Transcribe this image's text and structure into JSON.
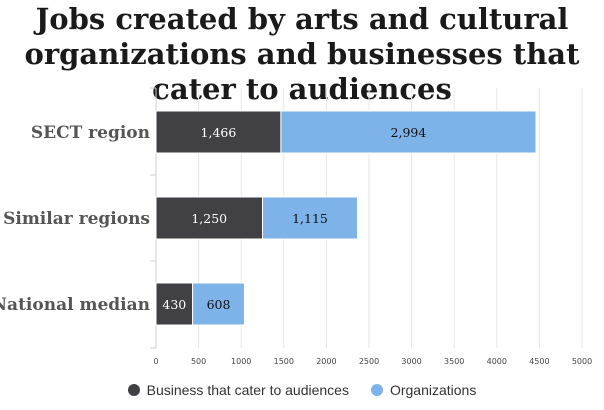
{
  "chart_data": {
    "type": "bar",
    "orientation": "horizontal",
    "stacked": true,
    "title": "Jobs created by arts and cultural\norganizations and businesses that\ncater to audiences",
    "categories": [
      "SECT region",
      "Similar regions",
      "National median"
    ],
    "series": [
      {
        "name": "Business that cater to audiences",
        "values": [
          1466,
          1250,
          430
        ],
        "labels": [
          "1,466",
          "1,250",
          "430"
        ],
        "color": "#414045"
      },
      {
        "name": "Organizations",
        "values": [
          2994,
          1115,
          608
        ],
        "labels": [
          "2,994",
          "1,115",
          "608"
        ],
        "color": "#7db3e8"
      }
    ],
    "xlim": [
      0,
      5000
    ],
    "xticks": [
      0,
      500,
      1000,
      1500,
      2000,
      2500,
      3000,
      3500,
      4000,
      4500,
      5000
    ],
    "xlabel": "",
    "ylabel": "",
    "grid": true,
    "legend": "bottom"
  }
}
